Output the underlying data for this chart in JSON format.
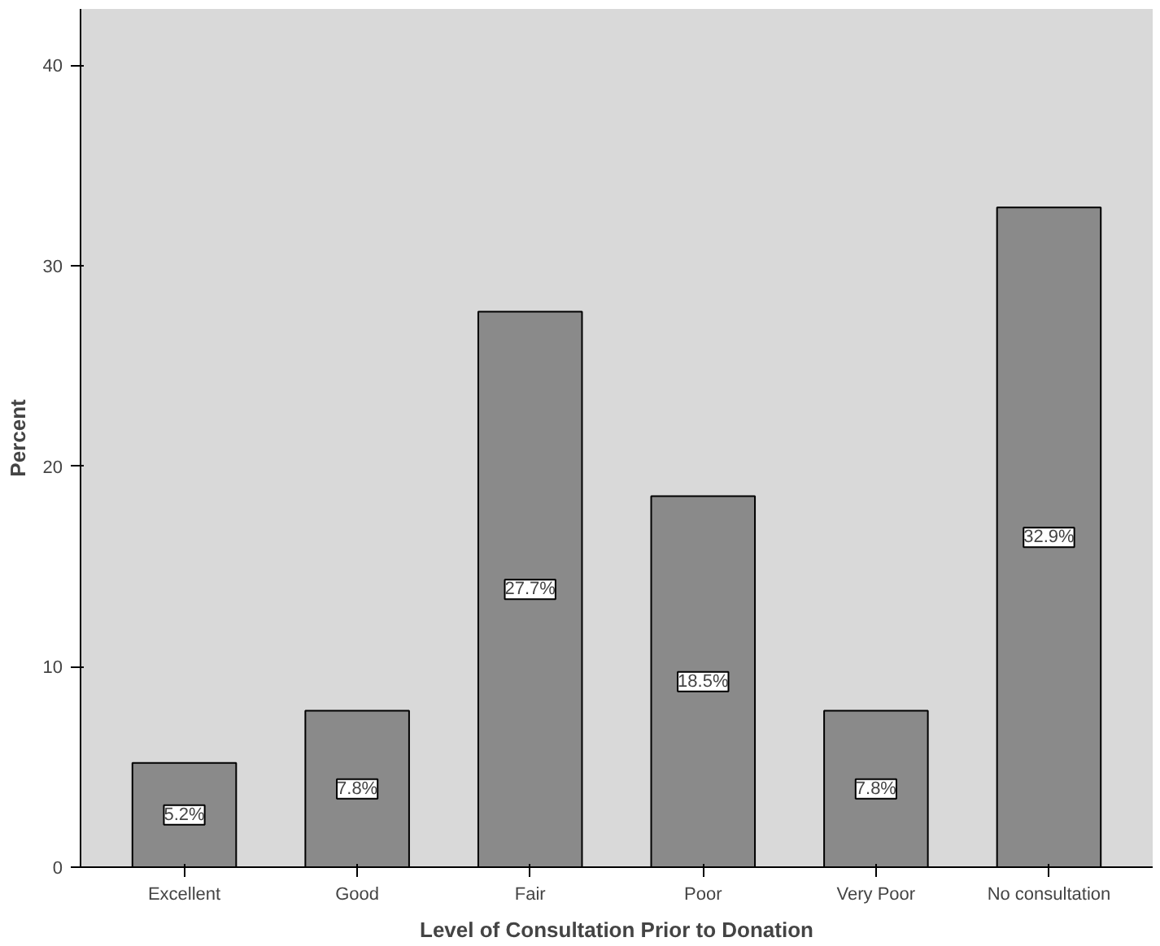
{
  "chart_data": {
    "type": "bar",
    "xlabel": "Level of Consultation Prior to Donation",
    "ylabel": "Percent",
    "categories": [
      "Excellent",
      "Good",
      "Fair",
      "Poor",
      "Very Poor",
      "No consultation"
    ],
    "values": [
      5.2,
      7.8,
      27.7,
      18.5,
      7.8,
      32.9
    ],
    "value_labels": [
      "5.2%",
      "7.8%",
      "27.7%",
      "18.5%",
      "7.8%",
      "32.9%"
    ],
    "color": "#8a8a8a",
    "ylim": [
      0,
      42.8
    ],
    "yticks": [
      0,
      10,
      20,
      30,
      40
    ],
    "grid": false
  }
}
